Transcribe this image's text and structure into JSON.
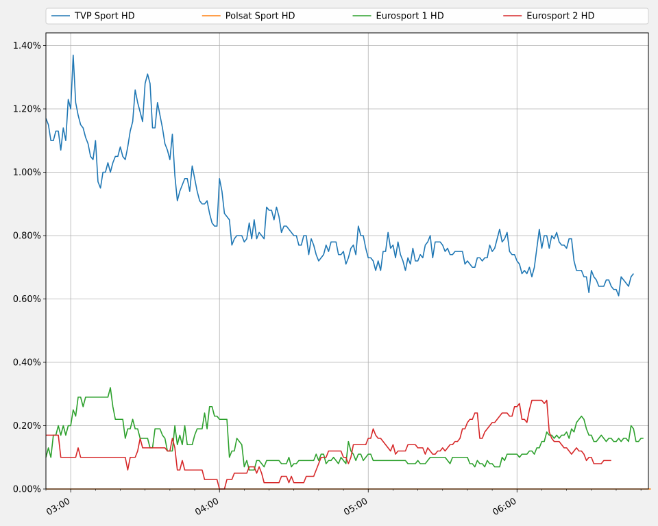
{
  "chart_data": {
    "type": "line",
    "title": "",
    "xlabel": "",
    "ylabel": "",
    "x_start": "02:50",
    "x_step_minutes": 1,
    "xlim": [
      "02:50",
      "06:53"
    ],
    "ylim": [
      0,
      1.44
    ],
    "y_unit": "%",
    "x_ticks": [
      "03:00",
      "04:00",
      "05:00",
      "06:00"
    ],
    "y_ticks": [
      "0.00%",
      "0.20%",
      "0.40%",
      "0.60%",
      "0.80%",
      "1.00%",
      "1.20%",
      "1.40%"
    ],
    "grid": true,
    "legend_position": "top",
    "series": [
      {
        "name": "TVP Sport HD",
        "color": "#1f77b4",
        "values": [
          1.17,
          1.15,
          1.1,
          1.1,
          1.13,
          1.13,
          1.07,
          1.14,
          1.1,
          1.23,
          1.2,
          1.37,
          1.22,
          1.18,
          1.15,
          1.14,
          1.11,
          1.09,
          1.05,
          1.04,
          1.1,
          0.97,
          0.95,
          1.0,
          1.0,
          1.03,
          1.0,
          1.03,
          1.05,
          1.05,
          1.08,
          1.05,
          1.04,
          1.08,
          1.13,
          1.16,
          1.26,
          1.22,
          1.19,
          1.16,
          1.28,
          1.31,
          1.28,
          1.14,
          1.14,
          1.22,
          1.18,
          1.14,
          1.09,
          1.07,
          1.04,
          1.12,
          0.99,
          0.91,
          0.94,
          0.96,
          0.98,
          0.98,
          0.94,
          1.02,
          0.98,
          0.94,
          0.91,
          0.9,
          0.9,
          0.91,
          0.87,
          0.84,
          0.83,
          0.83,
          0.98,
          0.94,
          0.87,
          0.86,
          0.85,
          0.77,
          0.79,
          0.8,
          0.8,
          0.8,
          0.78,
          0.79,
          0.84,
          0.79,
          0.85,
          0.79,
          0.81,
          0.8,
          0.79,
          0.89,
          0.88,
          0.88,
          0.85,
          0.89,
          0.86,
          0.81,
          0.83,
          0.83,
          0.82,
          0.81,
          0.8,
          0.8,
          0.77,
          0.77,
          0.8,
          0.8,
          0.74,
          0.79,
          0.77,
          0.74,
          0.72,
          0.73,
          0.74,
          0.77,
          0.75,
          0.78,
          0.78,
          0.78,
          0.74,
          0.74,
          0.75,
          0.71,
          0.73,
          0.76,
          0.77,
          0.74,
          0.83,
          0.8,
          0.8,
          0.76,
          0.73,
          0.73,
          0.72,
          0.69,
          0.72,
          0.69,
          0.75,
          0.75,
          0.81,
          0.76,
          0.77,
          0.73,
          0.78,
          0.74,
          0.72,
          0.69,
          0.73,
          0.71,
          0.76,
          0.72,
          0.72,
          0.74,
          0.73,
          0.77,
          0.78,
          0.8,
          0.73,
          0.78,
          0.78,
          0.78,
          0.77,
          0.75,
          0.76,
          0.74,
          0.74,
          0.75,
          0.75,
          0.75,
          0.75,
          0.71,
          0.72,
          0.71,
          0.7,
          0.7,
          0.73,
          0.73,
          0.72,
          0.73,
          0.73,
          0.77,
          0.75,
          0.76,
          0.79,
          0.82,
          0.78,
          0.79,
          0.81,
          0.75,
          0.74,
          0.74,
          0.72,
          0.71,
          0.68,
          0.69,
          0.68,
          0.7,
          0.67,
          0.7,
          0.76,
          0.82,
          0.76,
          0.8,
          0.8,
          0.76,
          0.8,
          0.79,
          0.81,
          0.78,
          0.77,
          0.77,
          0.76,
          0.79,
          0.79,
          0.72,
          0.69,
          0.69,
          0.69,
          0.67,
          0.67,
          0.62,
          0.69,
          0.67,
          0.66,
          0.64,
          0.64,
          0.64,
          0.66,
          0.66,
          0.64,
          0.63,
          0.63,
          0.61,
          0.67,
          0.66,
          0.65,
          0.64,
          0.67,
          0.68
        ]
      },
      {
        "name": "Polsat Sport HD",
        "color": "#ff7f0e",
        "values": [
          0.0,
          0.0,
          0.0,
          0.0,
          0.0,
          0.0,
          0.0,
          0.0,
          0.0,
          0.0,
          0.0,
          0.0,
          0.0,
          0.0,
          0.0,
          0.0,
          0.0,
          0.0,
          0.0,
          0.0,
          0.0,
          0.0,
          0.0,
          0.0,
          0.0,
          0.0,
          0.0,
          0.0,
          0.0,
          0.0,
          0.0,
          0.0,
          0.0,
          0.0,
          0.0,
          0.0,
          0.0,
          0.0,
          0.0,
          0.0,
          0.0,
          0.0,
          0.0,
          0.0,
          0.0,
          0.0,
          0.0,
          0.0,
          0.0,
          0.0,
          0.0,
          0.0,
          0.0,
          0.0,
          0.0,
          0.0,
          0.0,
          0.0,
          0.0,
          0.0,
          0.0,
          0.0,
          0.0,
          0.0,
          0.0,
          0.0,
          0.0,
          0.0,
          0.0,
          0.0,
          0.0,
          0.0,
          0.0,
          0.0,
          0.0,
          0.0,
          0.0,
          0.0,
          0.0,
          0.0,
          0.0,
          0.0,
          0.0,
          0.0,
          0.0,
          0.0,
          0.0,
          0.0,
          0.0,
          0.0,
          0.0,
          0.0,
          0.0,
          0.0,
          0.0,
          0.0,
          0.0,
          0.0,
          0.0,
          0.0,
          0.0,
          0.0,
          0.0,
          0.0,
          0.0,
          0.0,
          0.0,
          0.0,
          0.0,
          0.0,
          0.0,
          0.0,
          0.0,
          0.0,
          0.0,
          0.0,
          0.0,
          0.0,
          0.0,
          0.0,
          0.0,
          0.0,
          0.0,
          0.0,
          0.0,
          0.0,
          0.0,
          0.0,
          0.0,
          0.0,
          0.0,
          0.0,
          0.0,
          0.0,
          0.0,
          0.0,
          0.0,
          0.0,
          0.0,
          0.0,
          0.0,
          0.0,
          0.0,
          0.0,
          0.0,
          0.0,
          0.0,
          0.0,
          0.0,
          0.0,
          0.0,
          0.0,
          0.0,
          0.0,
          0.0,
          0.0,
          0.0,
          0.0,
          0.0,
          0.0,
          0.0,
          0.0,
          0.0,
          0.0,
          0.0,
          0.0,
          0.0,
          0.0,
          0.0,
          0.0,
          0.0,
          0.0,
          0.0,
          0.0,
          0.0,
          0.0,
          0.0,
          0.0,
          0.0,
          0.0,
          0.0,
          0.0,
          0.0,
          0.0,
          0.0,
          0.0,
          0.0,
          0.0,
          0.0,
          0.0,
          0.0,
          0.0,
          0.0,
          0.0,
          0.0,
          0.0,
          0.0,
          0.0,
          0.0,
          0.0,
          0.0,
          0.0,
          0.0,
          0.0,
          0.0,
          0.0,
          0.0,
          0.0,
          0.0,
          0.0,
          0.0,
          0.0,
          0.0,
          0.0,
          0.0,
          0.0,
          0.0,
          0.0,
          0.0,
          0.0,
          0.0,
          0.0,
          0.0,
          0.0,
          0.0,
          0.0,
          0.0,
          0.0,
          0.0,
          0.0,
          0.0,
          0.0,
          0.0,
          0.0,
          0.0,
          0.0,
          0.0,
          0.0,
          0.0,
          0.0,
          0.0,
          0.0,
          0.0,
          0.0,
          0.0
        ]
      },
      {
        "name": "Eurosport 1 HD",
        "color": "#2ca02c",
        "values": [
          0.1,
          0.13,
          0.1,
          0.17,
          0.17,
          0.2,
          0.17,
          0.2,
          0.17,
          0.2,
          0.2,
          0.25,
          0.23,
          0.29,
          0.29,
          0.26,
          0.29,
          0.29,
          0.29,
          0.29,
          0.29,
          0.29,
          0.29,
          0.29,
          0.29,
          0.29,
          0.32,
          0.26,
          0.22,
          0.22,
          0.22,
          0.22,
          0.16,
          0.19,
          0.19,
          0.22,
          0.19,
          0.19,
          0.16,
          0.16,
          0.16,
          0.16,
          0.13,
          0.13,
          0.19,
          0.19,
          0.19,
          0.17,
          0.16,
          0.12,
          0.12,
          0.12,
          0.2,
          0.14,
          0.17,
          0.14,
          0.2,
          0.14,
          0.14,
          0.14,
          0.17,
          0.19,
          0.19,
          0.19,
          0.24,
          0.19,
          0.26,
          0.26,
          0.23,
          0.23,
          0.22,
          0.22,
          0.22,
          0.22,
          0.1,
          0.12,
          0.12,
          0.16,
          0.15,
          0.14,
          0.07,
          0.09,
          0.06,
          0.06,
          0.06,
          0.09,
          0.09,
          0.08,
          0.07,
          0.09,
          0.09,
          0.09,
          0.09,
          0.09,
          0.09,
          0.08,
          0.08,
          0.08,
          0.1,
          0.07,
          0.08,
          0.08,
          0.09,
          0.09,
          0.09,
          0.09,
          0.09,
          0.09,
          0.09,
          0.11,
          0.09,
          0.11,
          0.11,
          0.08,
          0.09,
          0.09,
          0.1,
          0.09,
          0.08,
          0.1,
          0.09,
          0.08,
          0.15,
          0.12,
          0.11,
          0.09,
          0.11,
          0.11,
          0.09,
          0.1,
          0.11,
          0.11,
          0.09,
          0.09,
          0.09,
          0.09,
          0.09,
          0.09,
          0.09,
          0.09,
          0.09,
          0.09,
          0.09,
          0.09,
          0.09,
          0.09,
          0.08,
          0.08,
          0.08,
          0.08,
          0.09,
          0.08,
          0.08,
          0.08,
          0.09,
          0.1,
          0.1,
          0.1,
          0.1,
          0.1,
          0.1,
          0.1,
          0.09,
          0.08,
          0.1,
          0.1,
          0.1,
          0.1,
          0.1,
          0.1,
          0.1,
          0.08,
          0.08,
          0.07,
          0.09,
          0.08,
          0.08,
          0.07,
          0.09,
          0.08,
          0.08,
          0.07,
          0.07,
          0.07,
          0.1,
          0.09,
          0.11,
          0.11,
          0.11,
          0.11,
          0.11,
          0.1,
          0.11,
          0.11,
          0.11,
          0.12,
          0.12,
          0.11,
          0.13,
          0.13,
          0.15,
          0.15,
          0.18,
          0.17,
          0.17,
          0.16,
          0.17,
          0.16,
          0.17,
          0.17,
          0.18,
          0.16,
          0.19,
          0.18,
          0.21,
          0.22,
          0.23,
          0.22,
          0.19,
          0.17,
          0.17,
          0.15,
          0.15,
          0.16,
          0.17,
          0.16,
          0.15,
          0.16,
          0.16,
          0.15,
          0.15,
          0.16,
          0.15,
          0.16,
          0.16,
          0.15,
          0.2,
          0.19,
          0.15,
          0.15,
          0.16,
          0.16
        ]
      },
      {
        "name": "Eurosport 2 HD",
        "color": "#d62728",
        "values": [
          0.17,
          0.17,
          0.17,
          0.17,
          0.17,
          0.17,
          0.1,
          0.1,
          0.1,
          0.1,
          0.1,
          0.1,
          0.1,
          0.13,
          0.1,
          0.1,
          0.1,
          0.1,
          0.1,
          0.1,
          0.1,
          0.1,
          0.1,
          0.1,
          0.1,
          0.1,
          0.1,
          0.1,
          0.1,
          0.1,
          0.1,
          0.1,
          0.1,
          0.06,
          0.1,
          0.1,
          0.1,
          0.12,
          0.16,
          0.13,
          0.13,
          0.13,
          0.13,
          0.13,
          0.13,
          0.13,
          0.13,
          0.13,
          0.13,
          0.12,
          0.12,
          0.16,
          0.13,
          0.06,
          0.06,
          0.09,
          0.06,
          0.06,
          0.06,
          0.06,
          0.06,
          0.06,
          0.06,
          0.06,
          0.03,
          0.03,
          0.03,
          0.03,
          0.03,
          0.03,
          0.0,
          0.0,
          0.0,
          0.03,
          0.03,
          0.03,
          0.05,
          0.05,
          0.05,
          0.05,
          0.05,
          0.05,
          0.07,
          0.07,
          0.07,
          0.05,
          0.07,
          0.05,
          0.02,
          0.02,
          0.02,
          0.02,
          0.02,
          0.02,
          0.02,
          0.04,
          0.04,
          0.04,
          0.02,
          0.04,
          0.02,
          0.02,
          0.02,
          0.02,
          0.02,
          0.04,
          0.04,
          0.04,
          0.04,
          0.06,
          0.08,
          0.1,
          0.1,
          0.1,
          0.12,
          0.12,
          0.12,
          0.12,
          0.12,
          0.12,
          0.1,
          0.1,
          0.08,
          0.1,
          0.14,
          0.14,
          0.14,
          0.14,
          0.14,
          0.14,
          0.16,
          0.16,
          0.19,
          0.17,
          0.16,
          0.16,
          0.15,
          0.14,
          0.13,
          0.12,
          0.14,
          0.11,
          0.12,
          0.12,
          0.12,
          0.12,
          0.14,
          0.14,
          0.14,
          0.14,
          0.13,
          0.13,
          0.13,
          0.11,
          0.13,
          0.12,
          0.11,
          0.11,
          0.12,
          0.12,
          0.13,
          0.12,
          0.13,
          0.14,
          0.14,
          0.15,
          0.15,
          0.16,
          0.19,
          0.19,
          0.21,
          0.22,
          0.22,
          0.24,
          0.24,
          0.16,
          0.16,
          0.18,
          0.19,
          0.2,
          0.21,
          0.21,
          0.22,
          0.23,
          0.24,
          0.24,
          0.24,
          0.23,
          0.23,
          0.26,
          0.26,
          0.27,
          0.22,
          0.22,
          0.21,
          0.25,
          0.28,
          0.28,
          0.28,
          0.28,
          0.28,
          0.27,
          0.28,
          0.18,
          0.16,
          0.15,
          0.15,
          0.15,
          0.14,
          0.13,
          0.13,
          0.12,
          0.11,
          0.12,
          0.13,
          0.12,
          0.12,
          0.11,
          0.09,
          0.1,
          0.1,
          0.08,
          0.08,
          0.08,
          0.08,
          0.09,
          0.09,
          0.09,
          0.09
        ]
      }
    ]
  }
}
